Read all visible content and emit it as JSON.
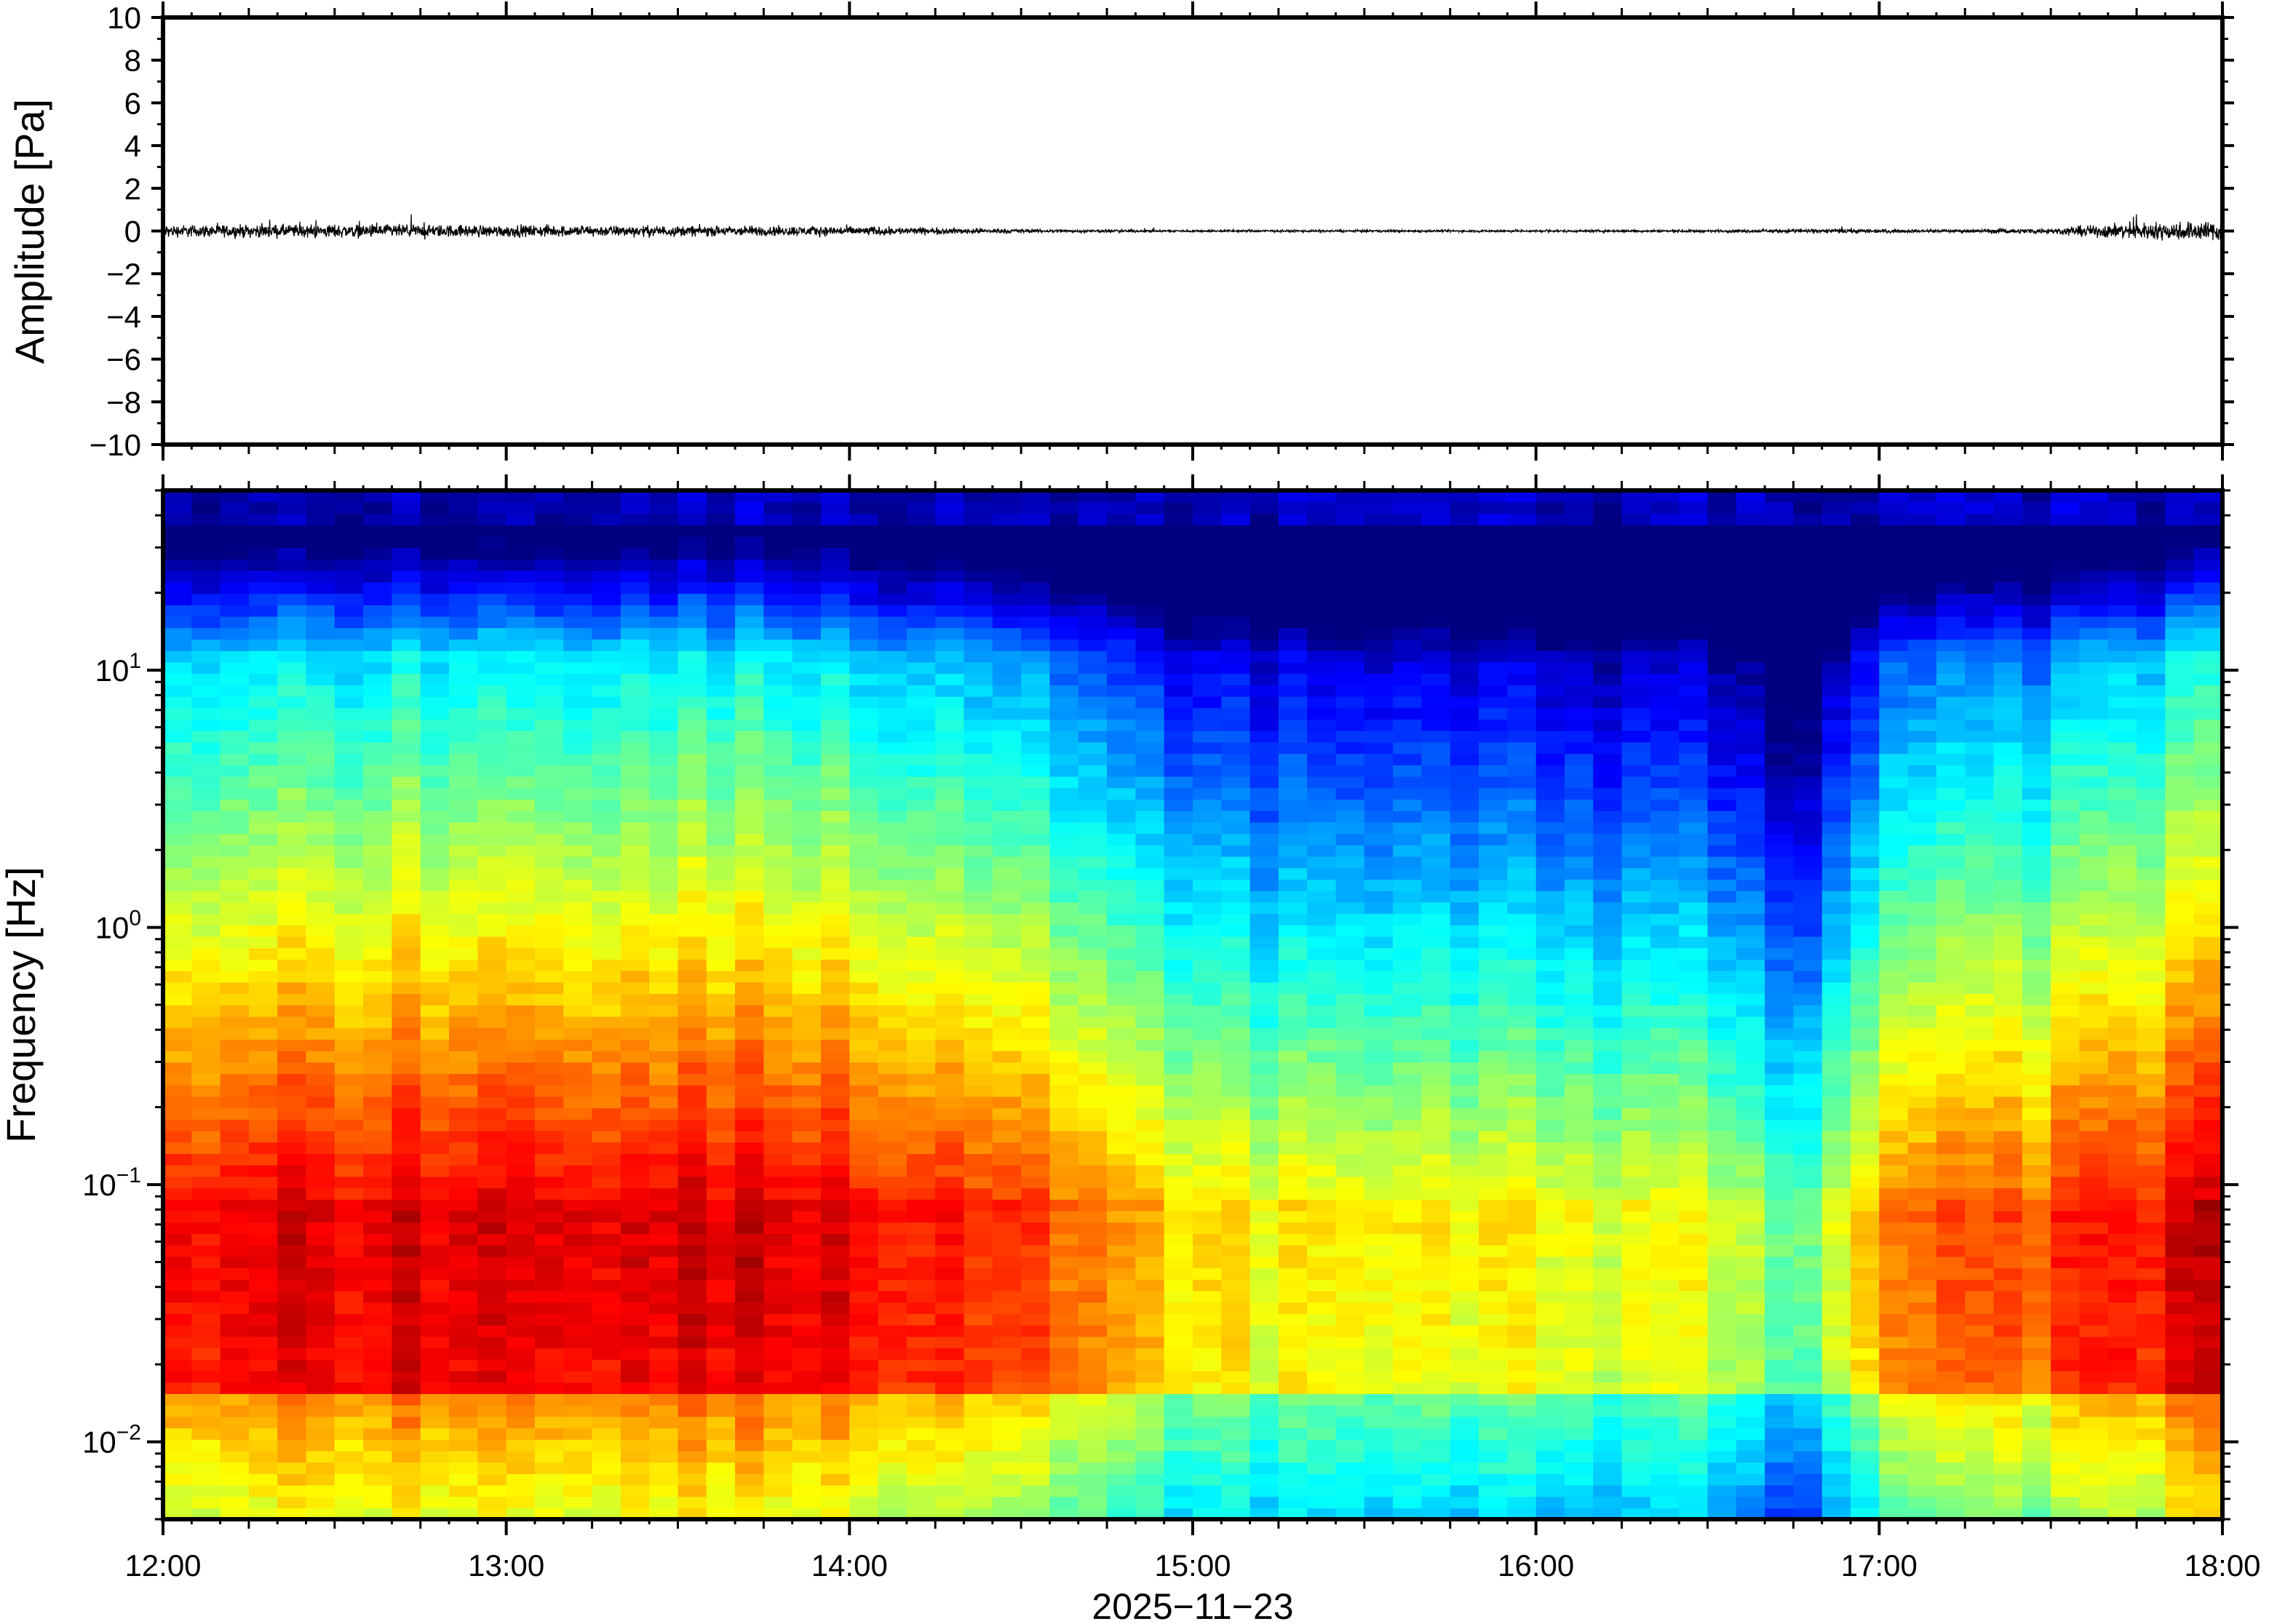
{
  "chart_data": [
    {
      "type": "line",
      "ylabel": "Amplitude [Pa]",
      "ylim": [
        -10,
        10
      ],
      "y_ticks": [
        10,
        8,
        6,
        4,
        2,
        0,
        -2,
        -4,
        -6,
        -8,
        -10
      ],
      "y_tick_labels": [
        "10",
        "8",
        "6",
        "4",
        "2",
        "0",
        "−2",
        "−4",
        "−6",
        "−8",
        "−10"
      ],
      "xlim": [
        "12:00",
        "18:00"
      ],
      "grid": false,
      "series": [
        {
          "color": "#000000",
          "envelope_x": [
            "12:00",
            "12:30",
            "13:00",
            "13:30",
            "14:00",
            "14:20",
            "14:40",
            "15:00",
            "15:30",
            "16:00",
            "16:30",
            "16:55",
            "17:10",
            "17:30",
            "17:40",
            "18:00"
          ],
          "envelope_halfwidth": [
            0.25,
            0.28,
            0.25,
            0.22,
            0.2,
            0.12,
            0.06,
            0.05,
            0.05,
            0.05,
            0.05,
            0.1,
            0.06,
            0.12,
            0.3,
            0.45
          ]
        }
      ]
    },
    {
      "type": "heatmap",
      "ylabel": "Frequency [Hz]",
      "xlabel": "2025−11−23",
      "x_ticks": [
        "12:00",
        "13:00",
        "14:00",
        "15:00",
        "16:00",
        "17:00",
        "18:00"
      ],
      "xlim": [
        "12:00",
        "18:00"
      ],
      "y_scale": "log",
      "ylim": [
        0.005,
        50
      ],
      "y_ticks": [
        0.01,
        0.1,
        1,
        10
      ],
      "y_tick_labels": [
        {
          "base": "10",
          "exp": "−2"
        },
        {
          "base": "10",
          "exp": "−1"
        },
        {
          "base": "10",
          "exp": "0"
        },
        {
          "base": "10",
          "exp": "1"
        }
      ],
      "colormap": "jet",
      "colorbar": false,
      "intensity_profile": {
        "hours": [
          "12:00",
          "13:00",
          "14:00",
          "14:30",
          "15:00",
          "15:30",
          "16:00",
          "16:30",
          "16:45",
          "17:00",
          "17:30",
          "17:45",
          "18:00"
        ],
        "relative_level": [
          0.88,
          0.9,
          0.87,
          0.8,
          0.64,
          0.6,
          0.6,
          0.58,
          0.45,
          0.72,
          0.78,
          0.85,
          0.92
        ]
      }
    }
  ]
}
